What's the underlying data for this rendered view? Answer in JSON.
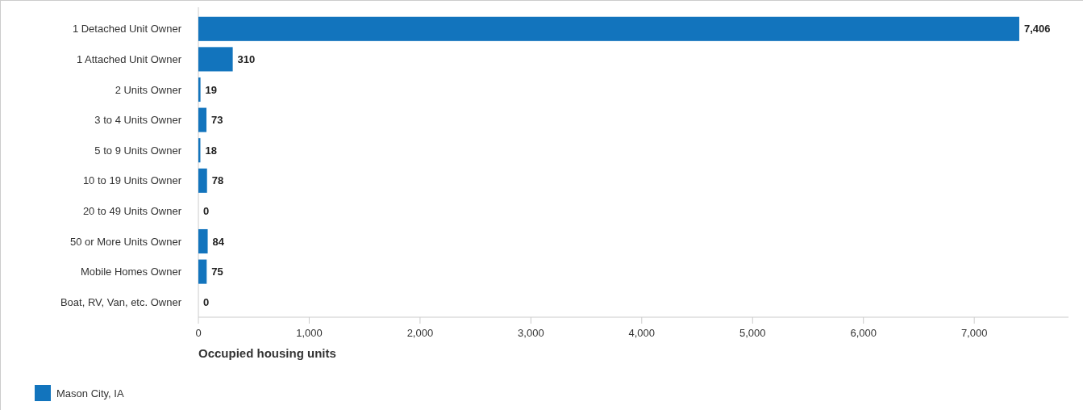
{
  "chart_data": {
    "type": "bar",
    "orientation": "horizontal",
    "xlabel": "Occupied housing units",
    "categories": [
      "1 Detached Unit Owner",
      "1 Attached Unit Owner",
      "2 Units Owner",
      "3 to 4 Units Owner",
      "5 to 9 Units Owner",
      "10 to 19 Units Owner",
      "20 to 49 Units Owner",
      "50 or More Units Owner",
      "Mobile Homes Owner",
      "Boat, RV, Van, etc. Owner"
    ],
    "series": [
      {
        "name": "Mason City, IA",
        "color": "#1274bd",
        "values": [
          7406,
          310,
          19,
          73,
          18,
          78,
          0,
          84,
          75,
          0
        ],
        "value_labels": [
          "7,406",
          "310",
          "19",
          "73",
          "18",
          "78",
          "0",
          "84",
          "75",
          "0"
        ]
      }
    ],
    "xlim": [
      0,
      7850
    ],
    "xticks": [
      {
        "value": 0,
        "label": "0"
      },
      {
        "value": 1000,
        "label": "1,000"
      },
      {
        "value": 2000,
        "label": "2,000"
      },
      {
        "value": 3000,
        "label": "3,000"
      },
      {
        "value": 4000,
        "label": "4,000"
      },
      {
        "value": 5000,
        "label": "5,000"
      },
      {
        "value": 6000,
        "label": "6,000"
      },
      {
        "value": 7000,
        "label": "7,000"
      }
    ],
    "grid": false,
    "legend": "bottom left"
  }
}
